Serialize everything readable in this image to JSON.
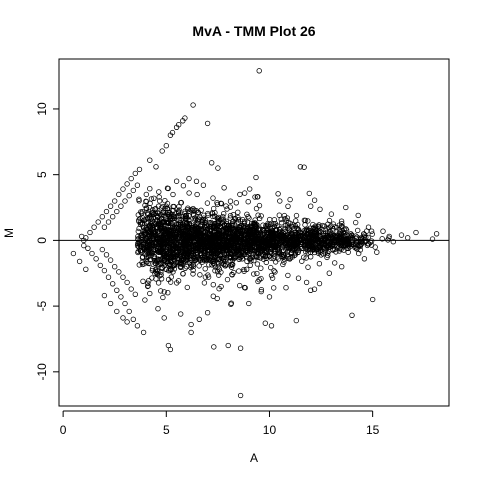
{
  "chart_data": {
    "type": "scatter",
    "title": "MvA - TMM Plot 26",
    "xlabel": "A",
    "ylabel": "M",
    "xlim": [
      -0.2,
      18.7
    ],
    "ylim": [
      -12.6,
      13.8
    ],
    "xticks": [
      0,
      5,
      10,
      15
    ],
    "yticks": [
      -10,
      -5,
      0,
      5,
      10
    ],
    "reference_line_y": 0,
    "marker": "open-circle",
    "grid": false,
    "legend": "none",
    "series": [
      {
        "points": [
          [
            9.5,
            12.9
          ],
          [
            6.3,
            10.3
          ],
          [
            5.9,
            9.3
          ],
          [
            5.8,
            9.1
          ],
          [
            5.6,
            8.8
          ],
          [
            5.5,
            8.6
          ],
          [
            7.0,
            8.9
          ],
          [
            5.3,
            8.2
          ],
          [
            5.2,
            8.0
          ],
          [
            5.0,
            7.2
          ],
          [
            4.8,
            6.8
          ],
          [
            7.2,
            5.9
          ],
          [
            7.5,
            5.5
          ],
          [
            11.5,
            5.6
          ],
          [
            4.2,
            6.1
          ],
          [
            4.5,
            5.6
          ],
          [
            3.7,
            5.4
          ],
          [
            3.5,
            5.1
          ],
          [
            3.3,
            4.7
          ],
          [
            3.1,
            4.3
          ],
          [
            2.9,
            3.9
          ],
          [
            2.7,
            3.5
          ],
          [
            2.5,
            3.0
          ],
          [
            2.3,
            2.6
          ],
          [
            2.1,
            2.2
          ],
          [
            1.9,
            1.8
          ],
          [
            1.7,
            1.4
          ],
          [
            1.5,
            1.0
          ],
          [
            1.3,
            0.6
          ],
          [
            1.1,
            0.2
          ],
          [
            3.6,
            4.2
          ],
          [
            3.4,
            3.8
          ],
          [
            3.2,
            3.4
          ],
          [
            3.0,
            3.0
          ],
          [
            2.8,
            2.6
          ],
          [
            2.6,
            2.2
          ],
          [
            2.4,
            1.8
          ],
          [
            2.2,
            1.4
          ],
          [
            2.0,
            1.0
          ],
          [
            1.0,
            0.0
          ],
          [
            1.2,
            -0.6
          ],
          [
            1.4,
            -1.0
          ],
          [
            1.6,
            -1.4
          ],
          [
            1.8,
            -1.9
          ],
          [
            2.0,
            -2.3
          ],
          [
            2.2,
            -2.8
          ],
          [
            2.4,
            -3.3
          ],
          [
            2.6,
            -3.8
          ],
          [
            2.8,
            -4.3
          ],
          [
            3.0,
            -4.8
          ],
          [
            3.2,
            -5.4
          ],
          [
            3.4,
            -6.0
          ],
          [
            3.6,
            -6.5
          ],
          [
            3.9,
            -7.0
          ],
          [
            0.5,
            -1.0
          ],
          [
            0.8,
            -1.6
          ],
          [
            1.1,
            -2.2
          ],
          [
            2.0,
            -4.2
          ],
          [
            2.3,
            -4.8
          ],
          [
            2.6,
            -5.4
          ],
          [
            2.9,
            -5.9
          ],
          [
            3.1,
            -6.2
          ],
          [
            1.9,
            -0.7
          ],
          [
            2.1,
            -1.1
          ],
          [
            2.3,
            -1.5
          ],
          [
            2.5,
            -2.0
          ],
          [
            2.7,
            -2.4
          ],
          [
            2.9,
            -2.8
          ],
          [
            3.1,
            -3.2
          ],
          [
            3.3,
            -3.7
          ],
          [
            3.5,
            -4.1
          ],
          [
            0.9,
            0.3
          ],
          [
            1.0,
            -0.4
          ],
          [
            5.1,
            -8.0
          ],
          [
            5.2,
            -8.3
          ],
          [
            6.2,
            -7.0
          ],
          [
            7.3,
            -8.1
          ],
          [
            8.0,
            -8.0
          ],
          [
            8.6,
            -8.2
          ],
          [
            9.8,
            -6.3
          ],
          [
            10.1,
            -6.5
          ],
          [
            11.3,
            -6.1
          ],
          [
            14.0,
            -5.7
          ],
          [
            15.0,
            -4.5
          ],
          [
            8.6,
            -11.8
          ],
          [
            6.2,
            -6.4
          ],
          [
            6.6,
            -6.0
          ],
          [
            7.0,
            -5.5
          ],
          [
            5.7,
            -5.6
          ],
          [
            4.6,
            -5.2
          ],
          [
            4.9,
            -5.9
          ],
          [
            9.0,
            -4.8
          ],
          [
            10.0,
            -4.3
          ],
          [
            17.1,
            0.6
          ],
          [
            16.4,
            0.4
          ],
          [
            16.7,
            0.2
          ],
          [
            17.9,
            0.1
          ],
          [
            18.1,
            0.5
          ],
          [
            15.8,
            0.3
          ],
          [
            15.2,
            -0.9
          ],
          [
            14.8,
            1.0
          ],
          [
            15.5,
            0.7
          ],
          [
            16.0,
            -0.1
          ],
          [
            13.7,
            2.5
          ],
          [
            14.3,
            1.9
          ],
          [
            13.0,
            2.0
          ],
          [
            12.0,
            2.6
          ],
          [
            10.5,
            3.0
          ],
          [
            9.3,
            3.3
          ],
          [
            8.8,
            3.6
          ],
          [
            11.0,
            3.1
          ],
          [
            6.1,
            4.7
          ],
          [
            6.8,
            4.2
          ],
          [
            7.8,
            4.0
          ],
          [
            5.5,
            4.5
          ],
          [
            4.4,
            3.2
          ],
          [
            4.1,
            -3.5
          ],
          [
            12.9,
            -2.5
          ],
          [
            13.5,
            -2.0
          ],
          [
            14.6,
            -1.4
          ],
          [
            11.8,
            -3.2
          ],
          [
            10.8,
            -3.6
          ],
          [
            9.6,
            -3.9
          ]
        ],
        "cloud": [
          {
            "cx": 6.5,
            "cy": 0.0,
            "sx": 1.4,
            "sy": 1.0,
            "n": 900
          },
          {
            "cx": 9.0,
            "cy": 0.0,
            "sx": 1.6,
            "sy": 0.8,
            "n": 700
          },
          {
            "cx": 11.5,
            "cy": 0.0,
            "sx": 1.3,
            "sy": 0.55,
            "n": 420
          },
          {
            "cx": 13.5,
            "cy": 0.0,
            "sx": 0.9,
            "sy": 0.35,
            "n": 180
          },
          {
            "cx": 4.6,
            "cy": 0.0,
            "sx": 0.7,
            "sy": 1.6,
            "n": 420
          },
          {
            "cx": 7.5,
            "cy": 0.0,
            "sx": 2.5,
            "sy": 1.9,
            "n": 260
          }
        ]
      }
    ]
  }
}
